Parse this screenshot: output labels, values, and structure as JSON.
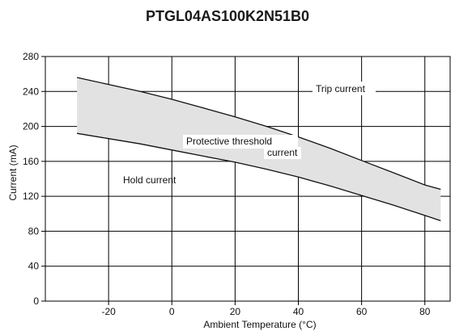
{
  "chart_data": {
    "type": "area",
    "title": "PTGL04AS100K2N51B0",
    "xlabel": "Ambient Temperature (°C)",
    "ylabel": "Current (mA)",
    "xlim": [
      -40,
      88
    ],
    "ylim": [
      0,
      280
    ],
    "xticks": [
      -20,
      0,
      20,
      40,
      60,
      80
    ],
    "yticks": [
      0,
      40,
      80,
      120,
      160,
      200,
      240,
      280
    ],
    "grid": true,
    "series": [
      {
        "name": "Trip current",
        "x": [
          -30,
          -20,
          -10,
          0,
          10,
          20,
          30,
          40,
          50,
          60,
          70,
          80,
          85
        ],
        "y": [
          256,
          248,
          240,
          231,
          221,
          211,
          200,
          188,
          175,
          161,
          147,
          133,
          128
        ]
      },
      {
        "name": "Hold current",
        "x": [
          -30,
          -20,
          -10,
          0,
          10,
          20,
          30,
          40,
          50,
          60,
          70,
          80,
          85
        ],
        "y": [
          192,
          186,
          180,
          173,
          166,
          159,
          151,
          142,
          132,
          121,
          110,
          98,
          92
        ]
      }
    ],
    "band_label": [
      "Protective threshold",
      "current"
    ],
    "colors": {
      "band": "#e2e2e2",
      "line": "#111111",
      "grid": "#000000"
    }
  }
}
